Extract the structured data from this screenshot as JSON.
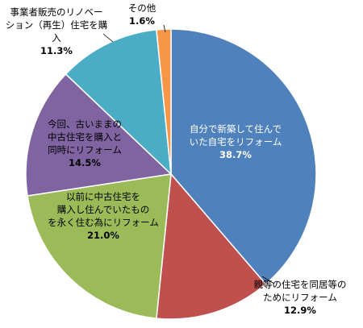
{
  "chart_data": {
    "type": "pie",
    "start_angle_deg": 0,
    "direction": "clockwise",
    "slices": [
      {
        "label_lines": [
          "自分で新築して住んで",
          "いた自宅をリフォーム"
        ],
        "value": 38.7,
        "value_text": "38.7%",
        "color": "#4f81bd"
      },
      {
        "label_lines": [
          "親等の住宅を同居等の",
          "ためにリフォーム"
        ],
        "value": 12.9,
        "value_text": "12.9%",
        "color": "#c0504d"
      },
      {
        "label_lines": [
          "以前に中古住宅を",
          "購入し住んでいたもの",
          "を永く住む為にリフォーム"
        ],
        "value": 21.0,
        "value_text": "21.0%",
        "color": "#9bbb59"
      },
      {
        "label_lines": [
          "今回、古いままの",
          "中古住宅を購入と",
          "同時にリフォーム"
        ],
        "value": 14.5,
        "value_text": "14.5%",
        "color": "#8064a2"
      },
      {
        "label_lines": [
          "事業者販売のリノベー",
          "ション（再生）住宅を購",
          "入"
        ],
        "value": 11.3,
        "value_text": "11.3%",
        "color": "#4bacc6"
      },
      {
        "label_lines": [
          "その他"
        ],
        "value": 1.6,
        "value_text": "1.6%",
        "color": "#f79646"
      }
    ]
  }
}
